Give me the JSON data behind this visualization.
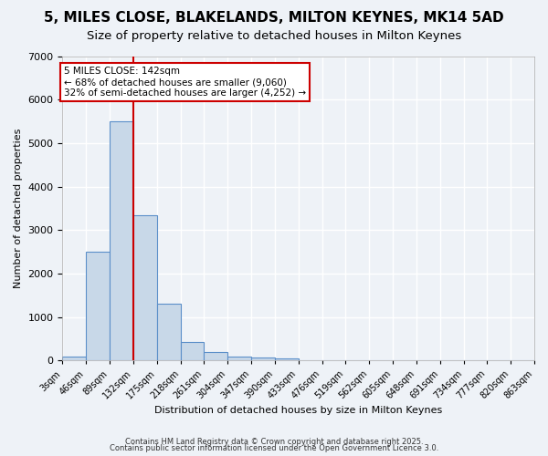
{
  "title1": "5, MILES CLOSE, BLAKELANDS, MILTON KEYNES, MK14 5AD",
  "title2": "Size of property relative to detached houses in Milton Keynes",
  "xlabel": "Distribution of detached houses by size in Milton Keynes",
  "ylabel": "Number of detached properties",
  "bar_values": [
    100,
    2500,
    5500,
    3350,
    1300,
    420,
    190,
    100,
    70,
    50,
    0,
    0,
    0,
    0,
    0,
    0,
    0,
    0,
    0,
    0
  ],
  "bin_edge_labels": [
    "3sqm",
    "46sqm",
    "89sqm",
    "132sqm",
    "175sqm",
    "218sqm",
    "261sqm",
    "304sqm",
    "347sqm",
    "390sqm",
    "433sqm",
    "476sqm",
    "519sqm",
    "562sqm",
    "605sqm",
    "648sqm",
    "691sqm",
    "734sqm",
    "777sqm",
    "820sqm",
    "863sqm"
  ],
  "bar_color": "#c8d8e8",
  "bar_edge_color": "#5b8fc9",
  "vline_x": 3,
  "vline_color": "#cc0000",
  "ylim": [
    0,
    7000
  ],
  "yticks": [
    0,
    1000,
    2000,
    3000,
    4000,
    5000,
    6000,
    7000
  ],
  "annotation_text": "5 MILES CLOSE: 142sqm\n← 68% of detached houses are smaller (9,060)\n32% of semi-detached houses are larger (4,252) →",
  "annotation_box_color": "#ffffff",
  "annotation_box_edge": "#cc0000",
  "footer1": "Contains HM Land Registry data © Crown copyright and database right 2025.",
  "footer2": "Contains public sector information licensed under the Open Government Licence 3.0.",
  "bg_color": "#eef2f7",
  "grid_color": "#ffffff",
  "title1_fontsize": 11,
  "title2_fontsize": 9.5
}
